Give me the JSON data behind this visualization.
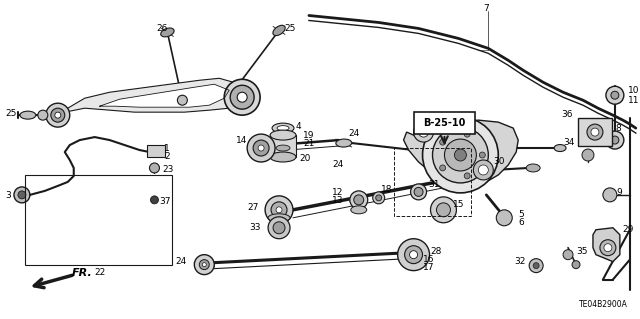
{
  "diagram_code": "TE04B2900A",
  "ref_label": "B-25-10",
  "background_color": "#ffffff",
  "line_color": "#1a1a1a",
  "text_color": "#000000",
  "fig_width": 6.4,
  "fig_height": 3.19,
  "dpi": 100
}
